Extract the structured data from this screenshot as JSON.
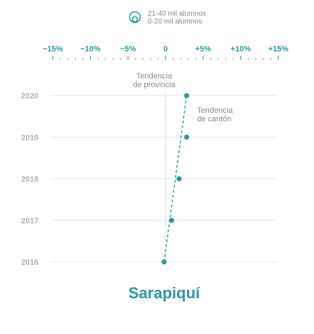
{
  "chart_data": {
    "type": "scatter",
    "title": "Sarapiquí",
    "legend": {
      "placement": "top-center",
      "items": [
        "21-40 mil alumnos",
        "0-20 mil alumnos"
      ]
    },
    "x_ticks": [
      {
        "value": -15,
        "label": "−15%"
      },
      {
        "value": -10,
        "label": "−10%"
      },
      {
        "value": -5,
        "label": "−5%"
      },
      {
        "value": 0,
        "label": "0"
      },
      {
        "value": 5,
        "label": "+5%"
      },
      {
        "value": 10,
        "label": "+10%"
      },
      {
        "value": 15,
        "label": "+15%"
      }
    ],
    "xlim": [
      -15,
      15
    ],
    "x_minor_step": 1,
    "years": [
      "2016",
      "2017",
      "2018",
      "2019",
      "2020"
    ],
    "series": [
      {
        "color": "#2a9aa0",
        "points": [
          {
            "year": "2016",
            "x": -0.2
          },
          {
            "year": "2017",
            "x": 0.8
          },
          {
            "year": "2018",
            "x": 1.8
          },
          {
            "year": "2019",
            "x": 2.8
          },
          {
            "year": "2020",
            "x": 2.8
          }
        ]
      }
    ],
    "province_trend": {
      "x": 0,
      "label_lines": [
        "Tendencia",
        "de provincia"
      ]
    },
    "canton_trend": {
      "from": {
        "year": "2016",
        "x": -0.2
      },
      "to": {
        "year": "2020",
        "x": 2.8
      },
      "label_lines": [
        "Tendencia",
        "de cantón"
      ]
    },
    "grid": true,
    "colors": {
      "accent": "#2a9aa0",
      "grid": "#e5e5e5",
      "year_label": "#b3b3b3",
      "annotation": "#8a8a8a"
    }
  }
}
